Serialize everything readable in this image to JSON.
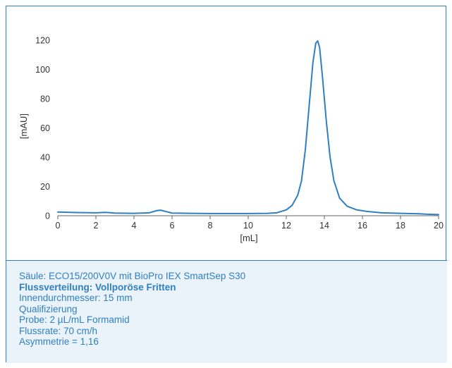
{
  "chart_data": {
    "type": "line",
    "xlabel": "[mL]",
    "ylabel": "[mAU]",
    "xlim": [
      0,
      20
    ],
    "ylim": [
      0,
      120
    ],
    "x_ticks": [
      0,
      2,
      4,
      6,
      8,
      10,
      12,
      14,
      16,
      18,
      20
    ],
    "y_ticks": [
      0,
      20,
      40,
      60,
      80,
      100,
      120
    ],
    "grid": false,
    "line_color": "#2f7fc1",
    "series": [
      {
        "x": [
          0,
          1,
          2,
          2.5,
          3,
          4,
          4.8,
          5.2,
          5.4,
          5.7,
          6,
          7,
          8,
          9,
          10,
          11,
          11.5,
          12,
          12.3,
          12.6,
          12.8,
          13,
          13.2,
          13.4,
          13.55,
          13.65,
          13.75,
          13.9,
          14.1,
          14.3,
          14.5,
          14.8,
          15.2,
          15.7,
          16.2,
          17,
          18,
          19,
          19.4,
          20
        ],
        "y": [
          2.5,
          2.2,
          2.0,
          2.3,
          1.8,
          1.6,
          2.0,
          3.5,
          3.8,
          2.8,
          1.8,
          1.6,
          1.5,
          1.5,
          1.5,
          1.6,
          2.0,
          4.0,
          7.0,
          14.0,
          24.0,
          45.0,
          75.0,
          105.0,
          118.0,
          119.5,
          115.0,
          95.0,
          65.0,
          40.0,
          24.0,
          12.0,
          6.5,
          4.0,
          3.0,
          2.0,
          1.6,
          1.3,
          1.0,
          0.8
        ]
      }
    ]
  },
  "caption": {
    "line1": "Säule: ECO15/200V0V mit BioPro IEX SmartSep S30",
    "line2": "Flussverteilung: Vollporöse Fritten",
    "line3": "Innendurchmesser: 15 mm",
    "line4": "Qualifizierung",
    "line5": "Probe: 2 µL/mL Formamid",
    "line6": "Flussrate: 70 cm/h",
    "line7": "Asymmetrie = 1,16"
  }
}
